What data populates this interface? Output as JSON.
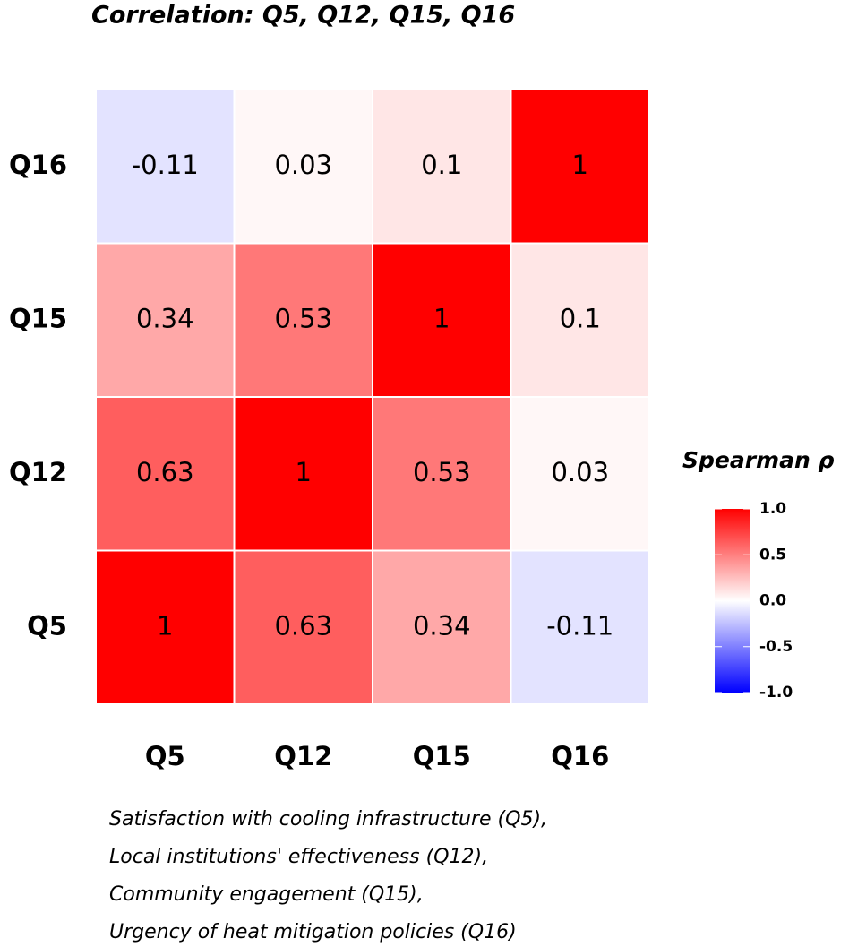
{
  "chart_data": {
    "type": "heatmap",
    "title": "Correlation: Q5, Q12, Q15, Q16",
    "x_categories": [
      "Q5",
      "Q12",
      "Q15",
      "Q16"
    ],
    "y_categories": [
      "Q5",
      "Q12",
      "Q15",
      "Q16"
    ],
    "values": [
      [
        1,
        0.63,
        0.34,
        -0.11
      ],
      [
        0.63,
        1,
        0.53,
        0.03
      ],
      [
        0.34,
        0.53,
        1,
        0.1
      ],
      [
        -0.11,
        0.03,
        0.1,
        1
      ]
    ],
    "colors": {
      "low": "#0000ff",
      "mid": "#ffffff",
      "high": "#ff0000"
    },
    "legend_title": "Spearman ρ",
    "zlim": [
      -1,
      1
    ],
    "zticks": [
      {
        "value": 1,
        "label": "1.0"
      },
      {
        "value": 0.5,
        "label": "0.5"
      },
      {
        "value": 0,
        "label": "0.0"
      },
      {
        "value": -0.5,
        "label": "-0.5"
      },
      {
        "value": -1,
        "label": "-1.0"
      }
    ],
    "caption": [
      "Satisfaction with cooling infrastructure (Q5),",
      "Local institutions' effectiveness (Q12),",
      "Community engagement (Q15),",
      "Urgency of heat mitigation policies (Q16)"
    ]
  }
}
